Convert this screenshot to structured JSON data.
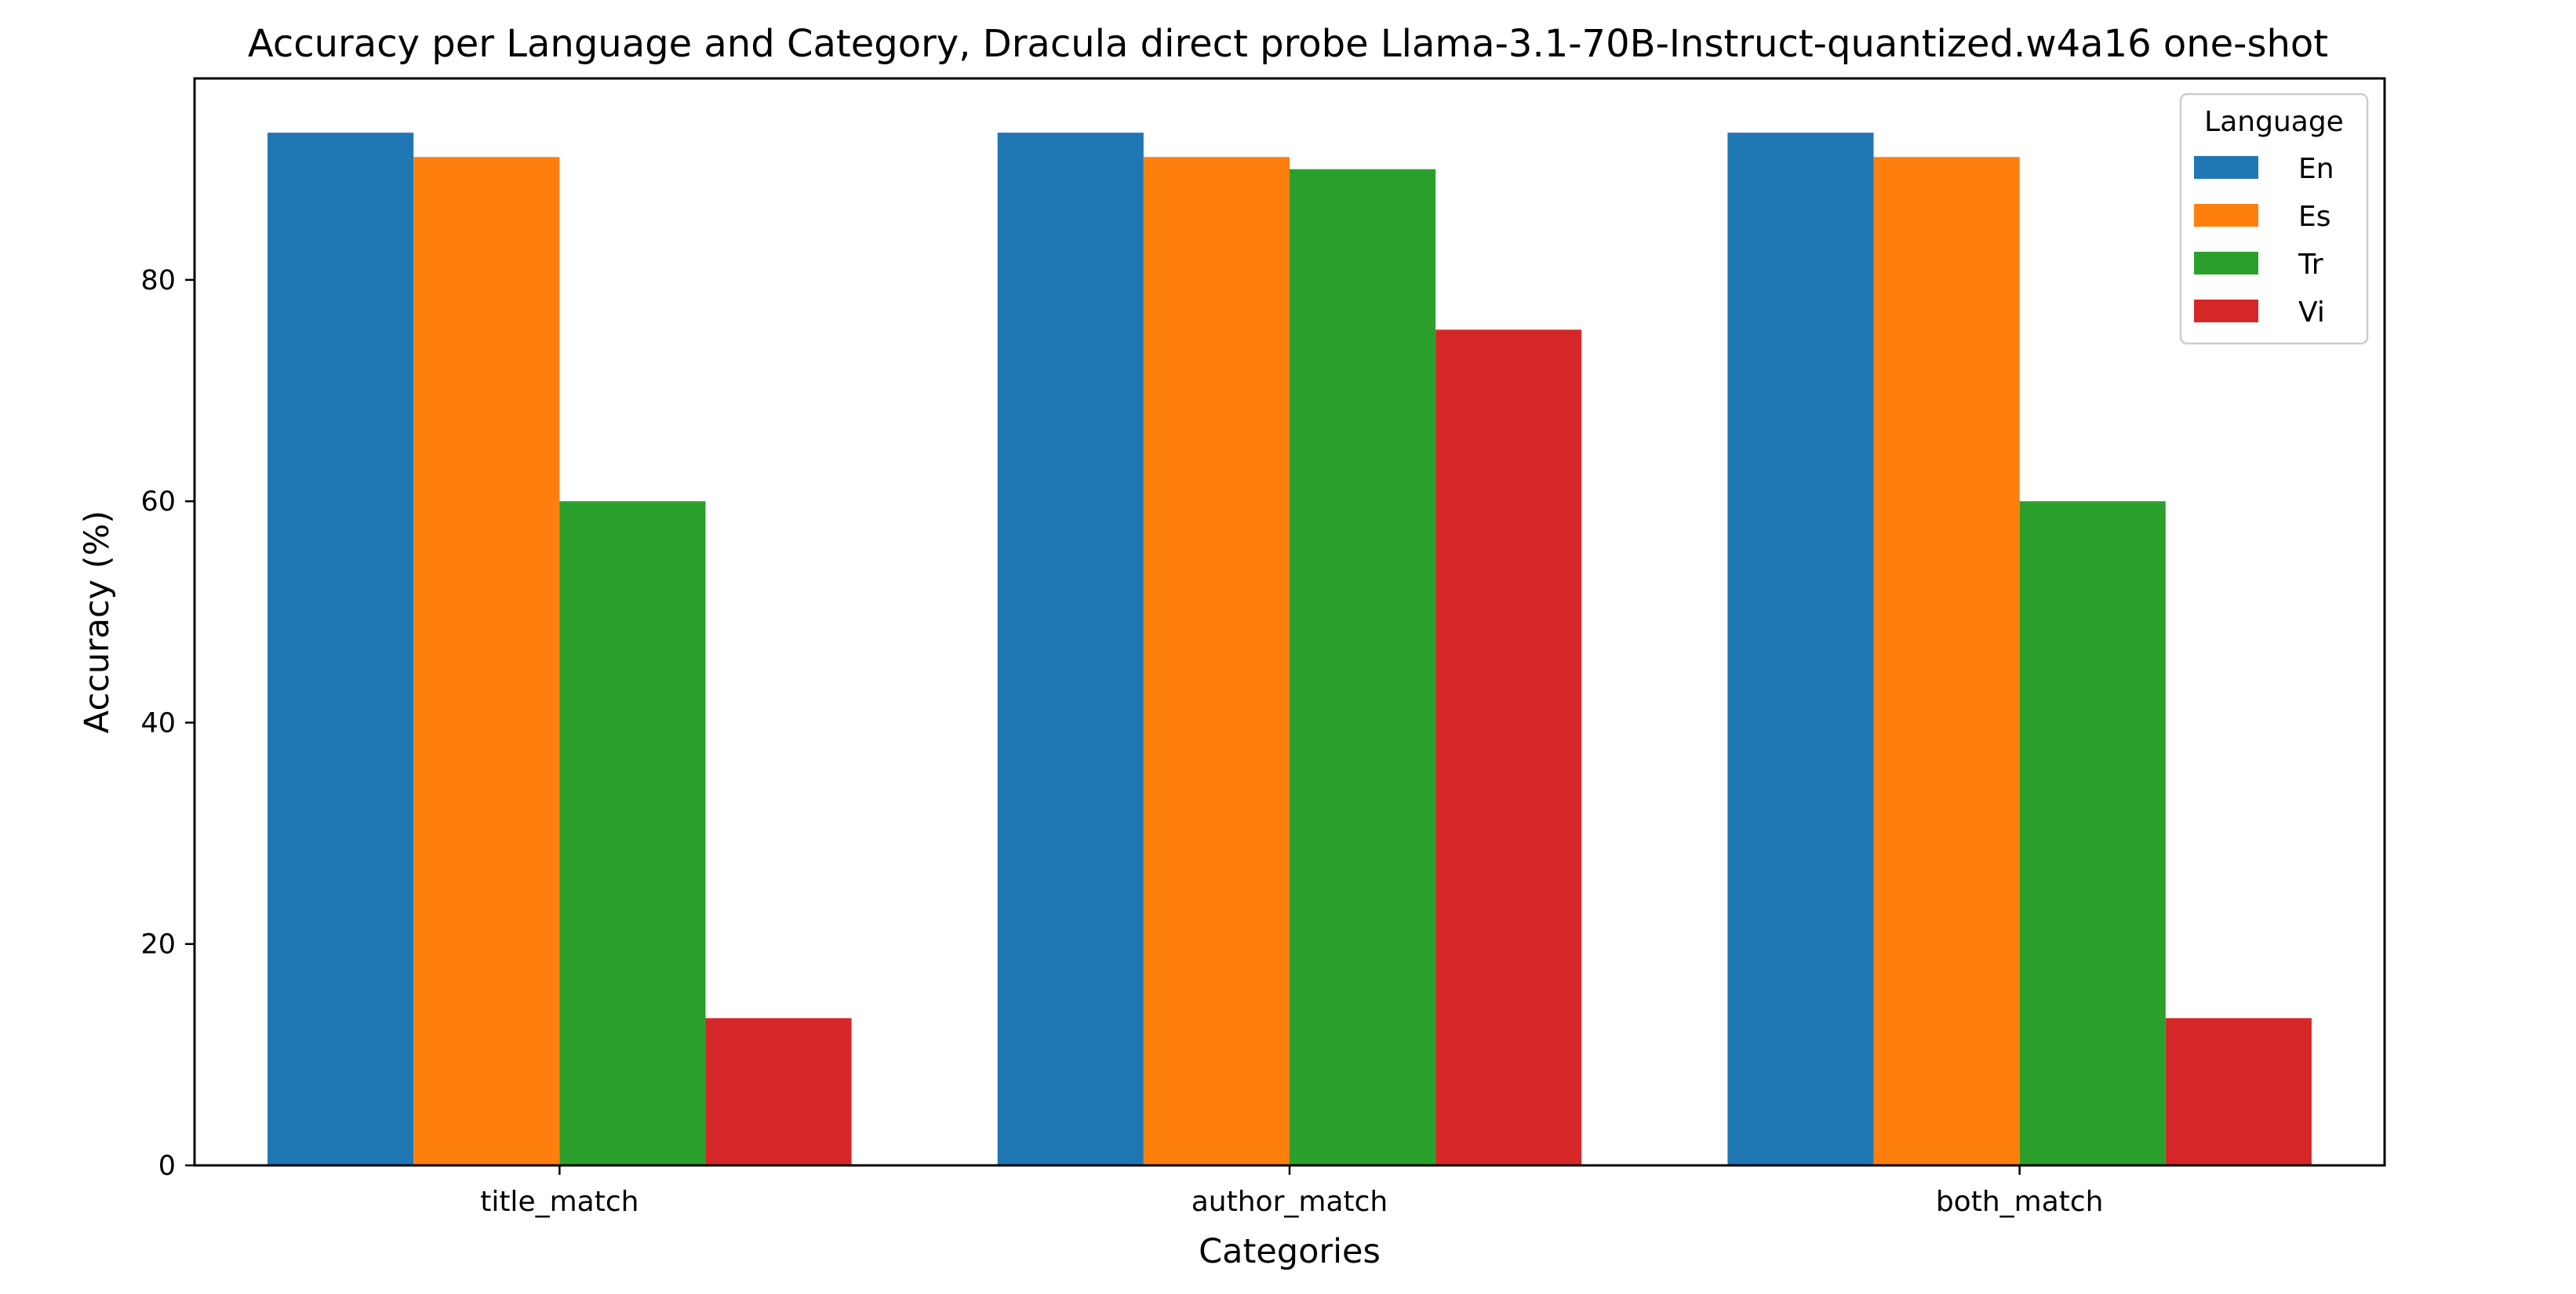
{
  "chart_data": {
    "type": "bar",
    "title": "Accuracy per Language and Category, Dracula direct probe Llama-3.1-70B-Instruct-quantized.w4a16 one-shot",
    "xlabel": "Categories",
    "ylabel": "Accuracy (%)",
    "categories": [
      "title_match",
      "author_match",
      "both_match"
    ],
    "ylim": [
      0,
      98.2
    ],
    "yticks": [
      0,
      20,
      40,
      60,
      80
    ],
    "grid": false,
    "legend": {
      "title": "Language",
      "placement": "top-right"
    },
    "series": [
      {
        "name": "En",
        "color": "#1f77b4",
        "values": [
          93.3,
          93.3,
          93.3
        ]
      },
      {
        "name": "Es",
        "color": "#ff7f0e",
        "values": [
          91.1,
          91.1,
          91.1
        ]
      },
      {
        "name": "Tr",
        "color": "#2ca02c",
        "values": [
          60.0,
          90.0,
          60.0
        ]
      },
      {
        "name": "Vi",
        "color": "#d62728",
        "values": [
          13.3,
          75.5,
          13.3
        ]
      }
    ]
  }
}
